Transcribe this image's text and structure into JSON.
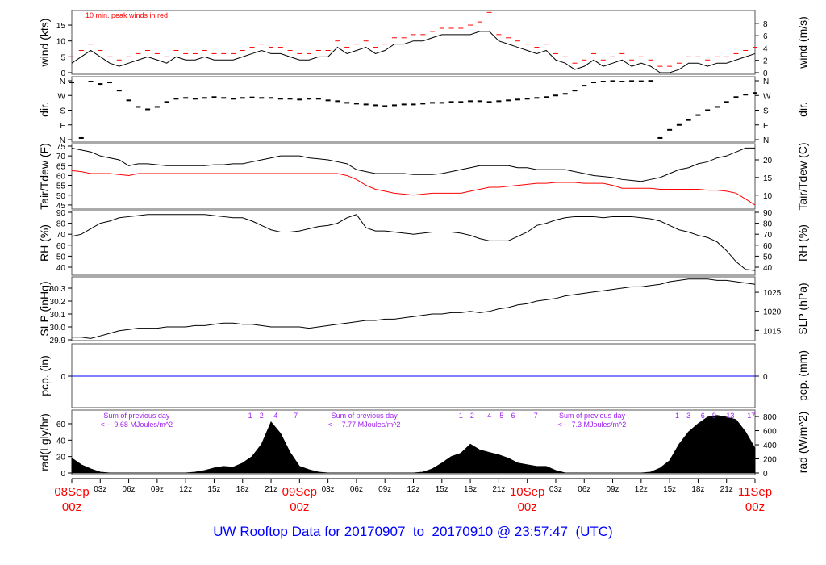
{
  "title": "UW Rooftop Data for 20170907  to  20170910 @ 23:57:47  (UTC)",
  "colors": {
    "line": "#000000",
    "peak": "#ff0000",
    "dew": "#ff0000",
    "precip": "#0000ff",
    "annotation": "#a020f0",
    "date_label": "#ff0000",
    "title": "#0000ff"
  },
  "chart_data": {
    "type": "line",
    "x_unit": "hour since 08Sep 00z (UTC)",
    "x_range": [
      0,
      72
    ],
    "x_ticks": [
      {
        "h": 0,
        "label": "08Sep",
        "sub": "00z",
        "major": true
      },
      {
        "h": 3,
        "label": "03z"
      },
      {
        "h": 6,
        "label": "06z"
      },
      {
        "h": 9,
        "label": "09z"
      },
      {
        "h": 12,
        "label": "12z"
      },
      {
        "h": 15,
        "label": "15z"
      },
      {
        "h": 18,
        "label": "18z"
      },
      {
        "h": 21,
        "label": "21z"
      },
      {
        "h": 24,
        "label": "09Sep",
        "sub": "00z",
        "major": true
      },
      {
        "h": 27,
        "label": "03z"
      },
      {
        "h": 30,
        "label": "06z"
      },
      {
        "h": 33,
        "label": "09z"
      },
      {
        "h": 36,
        "label": "12z"
      },
      {
        "h": 39,
        "label": "15z"
      },
      {
        "h": 42,
        "label": "18z"
      },
      {
        "h": 45,
        "label": "21z"
      },
      {
        "h": 48,
        "label": "10Sep",
        "sub": "00z",
        "major": true
      },
      {
        "h": 51,
        "label": "03z"
      },
      {
        "h": 54,
        "label": "06z"
      },
      {
        "h": 57,
        "label": "09z"
      },
      {
        "h": 60,
        "label": "12z"
      },
      {
        "h": 63,
        "label": "15z"
      },
      {
        "h": 66,
        "label": "18z"
      },
      {
        "h": 69,
        "label": "21z"
      },
      {
        "h": 72,
        "label": "11Sep",
        "sub": "00z",
        "major": true
      }
    ],
    "panels": [
      {
        "id": "wind",
        "ylabel": "wind (kts)",
        "ylabel_right": "wind (m/s)",
        "ylim": [
          0,
          19.5
        ],
        "ticks": [
          "0",
          "5",
          "10",
          "15"
        ],
        "ticks_right": [
          "0",
          "2",
          "4",
          "6",
          "8"
        ],
        "annotation": "10 min. peak winds in red",
        "series": [
          {
            "name": "wind",
            "values": [
              3,
              5,
              7,
              5,
              3,
              2,
              3,
              4,
              5,
              4,
              3,
              5,
              4,
              4,
              5,
              4,
              4,
              4,
              5,
              6,
              7,
              6,
              6,
              5,
              4,
              4,
              5,
              5,
              8,
              6,
              7,
              8,
              6,
              7,
              9,
              9,
              10,
              10,
              11,
              12,
              12,
              12,
              12,
              13,
              13,
              10,
              9,
              8,
              7,
              6,
              7,
              4,
              3,
              1,
              2,
              4,
              2,
              3,
              4,
              2,
              3,
              2,
              0,
              0,
              1,
              3,
              3,
              2,
              3,
              3,
              4,
              5,
              6
            ]
          },
          {
            "name": "peak",
            "values": [
              5,
              7,
              9,
              7,
              5,
              4,
              5,
              6,
              7,
              6,
              5,
              7,
              6,
              6,
              7,
              6,
              6,
              6,
              7,
              8,
              9,
              8,
              8,
              7,
              6,
              6,
              7,
              7,
              10,
              8,
              9,
              10,
              8,
              9,
              11,
              11,
              12,
              12,
              13,
              14,
              14,
              14,
              15,
              16,
              19,
              12,
              11,
              10,
              9,
              8,
              9,
              6,
              5,
              3,
              4,
              6,
              4,
              5,
              6,
              4,
              5,
              4,
              2,
              2,
              3,
              5,
              5,
              4,
              5,
              5,
              6,
              7,
              8
            ]
          }
        ]
      },
      {
        "id": "dir",
        "ylabel": "dir.",
        "ylabel_right": "dir.",
        "ylim": [
          0,
          360
        ],
        "ticks": [
          "N",
          "E",
          "S",
          "W",
          "N"
        ],
        "ticks_right": [
          "N",
          "E",
          "S",
          "W",
          "N"
        ],
        "series": [
          {
            "name": "direction",
            "values": [
              350,
              10,
              355,
              340,
              350,
              300,
              240,
              200,
              185,
              200,
              230,
              250,
              255,
              250,
              255,
              260,
              255,
              250,
              255,
              258,
              255,
              255,
              250,
              250,
              245,
              250,
              250,
              240,
              235,
              225,
              220,
              215,
              210,
              205,
              210,
              215,
              215,
              220,
              225,
              225,
              230,
              230,
              235,
              235,
              230,
              235,
              240,
              245,
              250,
              255,
              260,
              270,
              280,
              300,
              330,
              350,
              355,
              358,
              355,
              358,
              357,
              359,
              10,
              60,
              90,
              120,
              150,
              180,
              200,
              230,
              260,
              275,
              285
            ]
          }
        ]
      },
      {
        "id": "temp",
        "ylabel": "Tair/Tdew (F)",
        "ylabel_right": "Tair/Tdew (C)",
        "ylim": [
          44,
          76
        ],
        "ticks": [
          "45",
          "50",
          "55",
          "60",
          "65",
          "70",
          "75"
        ],
        "ticks_right": [
          "10",
          "15",
          "20"
        ],
        "series": [
          {
            "name": "Tair",
            "values": [
              74,
              73,
              72,
              70,
              69,
              68,
              65,
              66,
              66,
              65.5,
              65,
              65,
              65,
              65,
              65,
              65.5,
              65.5,
              66,
              66,
              67,
              68,
              69,
              70,
              70,
              70,
              69,
              68.5,
              68,
              67,
              66,
              63,
              62,
              61,
              61,
              61,
              61,
              60.5,
              60.5,
              60.5,
              61,
              62,
              63,
              64,
              65,
              65,
              65,
              65,
              64,
              64,
              63,
              63,
              63,
              63,
              62,
              61,
              60,
              59.5,
              59,
              58,
              57.5,
              57,
              58,
              59,
              61,
              63,
              64,
              66,
              67,
              69,
              70,
              72,
              74,
              74
            ]
          },
          {
            "name": "Tdew",
            "values": [
              62.5,
              62,
              61,
              61,
              61,
              60.5,
              60,
              61,
              61,
              61,
              61,
              61,
              61,
              61,
              61,
              61,
              61,
              61,
              61,
              61,
              61,
              61,
              61,
              61,
              61,
              61,
              61,
              61,
              61,
              60,
              58,
              55,
              53,
              52,
              51,
              50.5,
              50,
              50.5,
              51,
              51,
              51,
              51,
              52,
              53,
              54,
              54,
              54.5,
              55,
              55.5,
              56,
              56,
              56.5,
              56.5,
              56.5,
              56,
              56,
              56,
              55,
              53.5,
              53.5,
              53.5,
              53.5,
              53,
              53,
              53,
              53,
              53,
              52.5,
              52.5,
              52,
              51,
              48,
              45
            ]
          }
        ]
      },
      {
        "id": "rh",
        "ylabel": "RH (%)",
        "ylabel_right": "RH (%)",
        "ylim": [
          35,
          91
        ],
        "ticks": [
          "40",
          "50",
          "60",
          "70",
          "80",
          "90"
        ],
        "ticks_right": [
          "40",
          "50",
          "60",
          "70",
          "80",
          "90"
        ],
        "series": [
          {
            "name": "RH",
            "values": [
              68,
              70,
              75,
              80,
              82,
              85,
              86,
              87,
              88,
              88,
              88,
              88,
              88,
              88,
              88,
              87,
              86,
              85,
              85,
              82,
              78,
              74,
              72,
              72,
              73,
              75,
              77,
              78,
              80,
              85,
              88,
              76,
              73,
              73,
              72,
              71,
              70,
              71,
              72,
              72,
              72,
              71,
              69,
              66,
              64,
              64,
              64,
              68,
              72,
              78,
              80,
              83,
              85,
              86,
              86,
              86,
              85,
              86,
              86,
              86,
              85,
              84,
              82,
              78,
              74,
              72,
              69,
              67,
              63,
              55,
              45,
              38,
              37
            ]
          }
        ]
      },
      {
        "id": "slp",
        "ylabel": "SLP (inHg)",
        "ylabel_right": "SLP (hPa)",
        "ylim": [
          29.9,
          30.39
        ],
        "ticks": [
          "29.9",
          "30.0",
          "30.1",
          "30.2",
          "30.3"
        ],
        "ticks_right": [
          "1015",
          "1020",
          "1025"
        ],
        "series": [
          {
            "name": "SLP",
            "values": [
              29.92,
              29.92,
              29.91,
              29.93,
              29.95,
              29.97,
              29.98,
              29.99,
              29.99,
              29.99,
              30.0,
              30.0,
              30.0,
              30.01,
              30.01,
              30.02,
              30.03,
              30.03,
              30.02,
              30.02,
              30.01,
              30.0,
              30.0,
              30.0,
              30.0,
              29.99,
              30.0,
              30.01,
              30.02,
              30.03,
              30.04,
              30.05,
              30.05,
              30.06,
              30.06,
              30.07,
              30.08,
              30.09,
              30.1,
              30.1,
              30.11,
              30.11,
              30.12,
              30.11,
              30.12,
              30.14,
              30.15,
              30.17,
              30.18,
              30.2,
              30.21,
              30.22,
              30.24,
              30.25,
              30.26,
              30.27,
              30.28,
              30.29,
              30.3,
              30.31,
              30.31,
              30.32,
              30.33,
              30.35,
              30.36,
              30.37,
              30.37,
              30.37,
              30.36,
              30.36,
              30.35,
              30.34,
              30.33
            ]
          }
        ]
      },
      {
        "id": "pcp",
        "ylabel": "pcp. (in)",
        "ylabel_right": "pcp. (mm)",
        "ticks": [
          "0"
        ],
        "ticks_right": [
          "0"
        ],
        "series": [
          {
            "name": "precip",
            "values": [
              0,
              0
            ]
          }
        ]
      },
      {
        "id": "rad",
        "ylabel": "rad(Lgly/hr)",
        "ylabel_right": "rad (W/m^2)",
        "ylim": [
          0,
          76
        ],
        "ticks": [
          "0",
          "20",
          "40",
          "60"
        ],
        "ticks_right": [
          "0",
          "200",
          "400",
          "600",
          "800"
        ],
        "series": [
          {
            "name": "radiation",
            "values": [
              18,
              10,
              5,
              1,
              0,
              0,
              0,
              0,
              0,
              0,
              0,
              0,
              0,
              1,
              3,
              6,
              8,
              7,
              12,
              20,
              35,
              62,
              48,
              25,
              8,
              4,
              1,
              0,
              0,
              0,
              0,
              0,
              0,
              0,
              0,
              0,
              0,
              1,
              5,
              12,
              20,
              24,
              35,
              28,
              25,
              22,
              18,
              12,
              10,
              8,
              8,
              3,
              0,
              0,
              0,
              0,
              0,
              0,
              0,
              0,
              0,
              1,
              6,
              15,
              35,
              50,
              60,
              68,
              70,
              68,
              65,
              50,
              30
            ]
          }
        ],
        "daily_sums": [
          {
            "line1": "Sum of previous day",
            "line2": "<--- 9.68 MJoules/m^2"
          },
          {
            "line1": "Sum of previous day",
            "line2": "<--- 7.77 MJoules/m^2"
          },
          {
            "line1": "Sum of previous day",
            "line2": "<--- 7.3 MJoules/m^2"
          }
        ],
        "uv_marks": [
          {
            "h": 18.8,
            "label": "1"
          },
          {
            "h": 20,
            "label": "2"
          },
          {
            "h": 21.5,
            "label": "4"
          },
          {
            "h": 23.6,
            "label": "7"
          },
          {
            "h": 41,
            "label": "1"
          },
          {
            "h": 42.2,
            "label": "2"
          },
          {
            "h": 44,
            "label": "4"
          },
          {
            "h": 45.3,
            "label": "5"
          },
          {
            "h": 46.5,
            "label": "6"
          },
          {
            "h": 48.9,
            "label": "7"
          },
          {
            "h": 63.8,
            "label": "1"
          },
          {
            "h": 65,
            "label": "3"
          },
          {
            "h": 66.5,
            "label": "6"
          },
          {
            "h": 67.7,
            "label": "9"
          },
          {
            "h": 69.4,
            "label": "13"
          },
          {
            "h": 71.6,
            "label": "17"
          }
        ]
      }
    ]
  }
}
